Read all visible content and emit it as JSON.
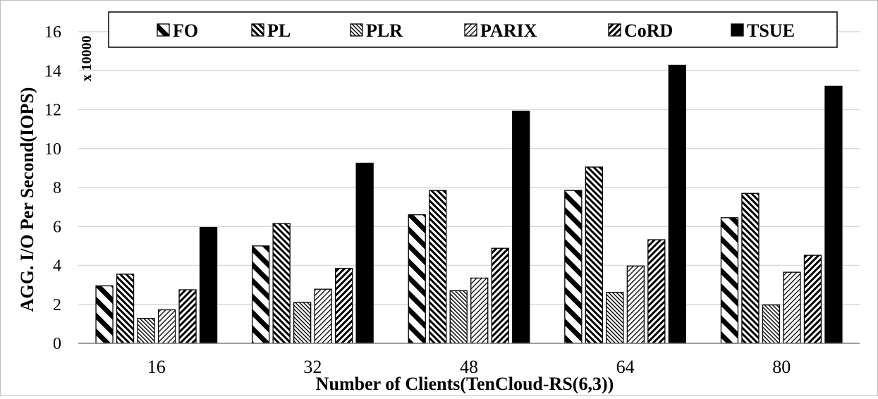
{
  "chart_data": {
    "type": "bar",
    "categories": [
      "16",
      "32",
      "48",
      "64",
      "80"
    ],
    "series": [
      {
        "name": "FO",
        "pattern": "diag-back-wide",
        "values": [
          2.95,
          5.0,
          6.6,
          7.85,
          6.45
        ]
      },
      {
        "name": "PL",
        "pattern": "diag-back-dense",
        "values": [
          3.55,
          6.15,
          7.85,
          9.05,
          7.7
        ]
      },
      {
        "name": "PLR",
        "pattern": "diag-fine",
        "values": [
          1.28,
          2.1,
          2.7,
          2.62,
          1.97
        ]
      },
      {
        "name": "PARIX",
        "pattern": "diag-light",
        "values": [
          1.72,
          2.78,
          3.35,
          3.97,
          3.65
        ]
      },
      {
        "name": "CoRD",
        "pattern": "diag-fwd-dense",
        "values": [
          2.75,
          3.85,
          4.88,
          5.32,
          4.52
        ]
      },
      {
        "name": "TSUE",
        "pattern": "solid",
        "values": [
          5.95,
          9.25,
          11.92,
          14.28,
          13.2
        ]
      }
    ],
    "ylabel": "AGG. I/O Per Second(IOPS)",
    "xlabel": "Number of Clients(TenCloud-RS(6,3))",
    "y_multiplier": "x 10000",
    "ylim": [
      0,
      16
    ],
    "yticks": [
      "0",
      "2",
      "4",
      "6",
      "8",
      "10",
      "12",
      "14",
      "16"
    ],
    "grid": true,
    "legend_position": "top",
    "colors": {
      "bar_fill": "#000000",
      "grid": "#d9d9d9",
      "axis": "#7f7f7f"
    }
  }
}
